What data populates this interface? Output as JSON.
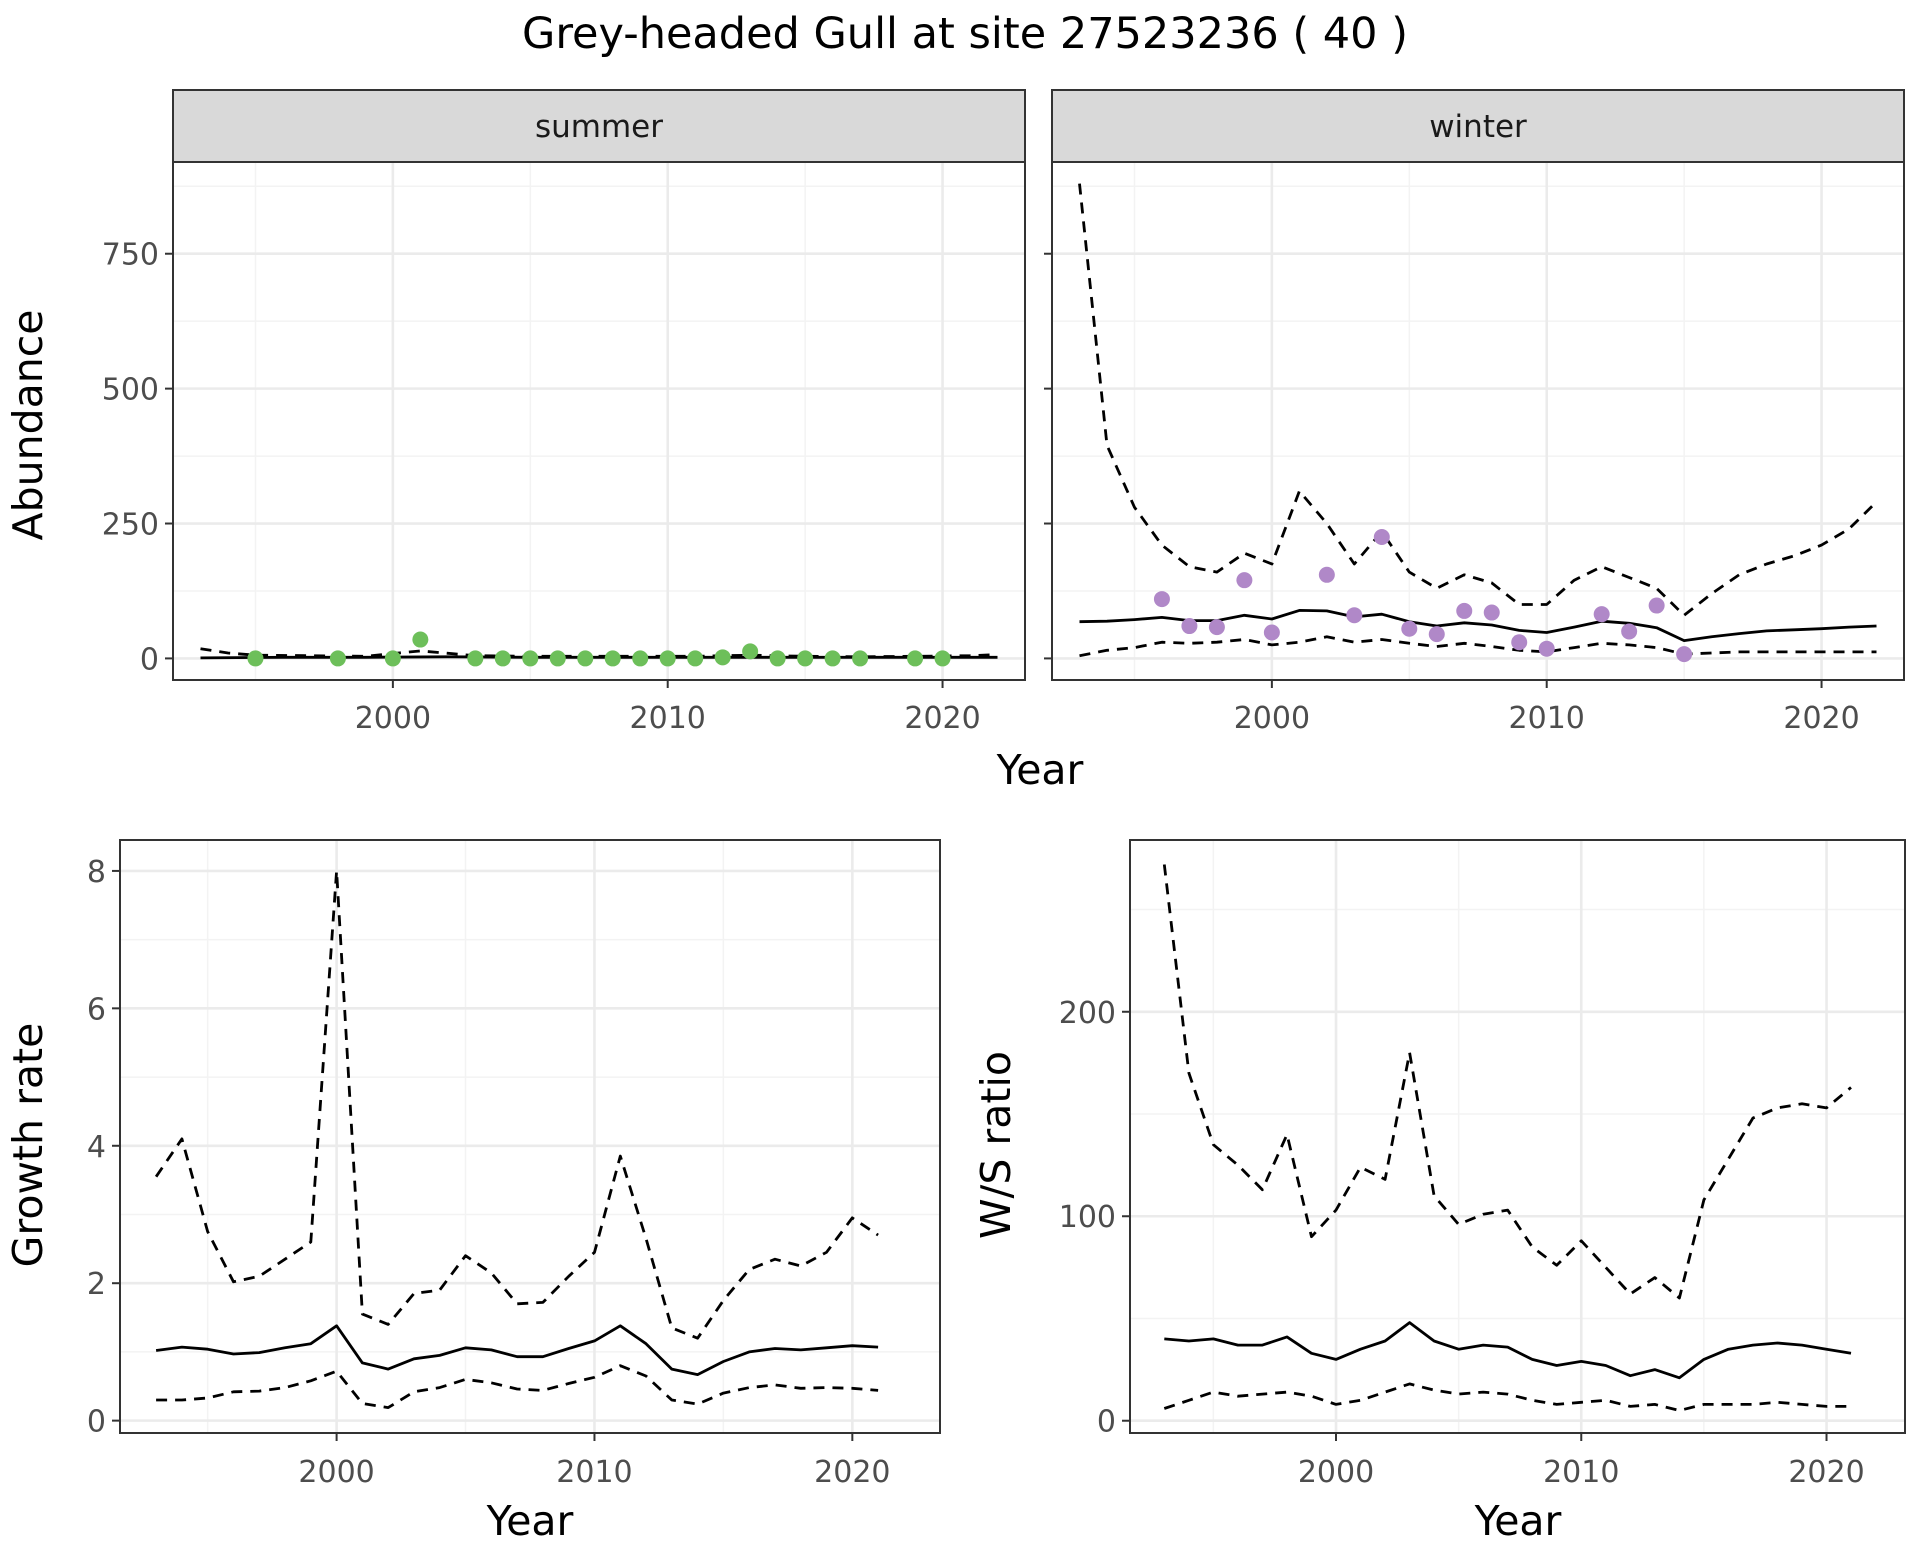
{
  "title": "Grey-headed Gull at site 27523236 ( 40 )",
  "colors": {
    "summer_points": "#6dbf5a",
    "winter_points": "#b088c8",
    "line": "#000000",
    "grid_major": "#ebebeb",
    "grid_minor": "#f3f3f3",
    "strip_bg": "#d9d9d9"
  },
  "chart_data": [
    {
      "type": "line",
      "facet": "summer",
      "xlabel": "Year",
      "ylabel": "Abundance",
      "xlim": [
        1992,
        2023
      ],
      "ylim": [
        -40,
        920
      ],
      "xticks": [
        "2000",
        "2010",
        "2020"
      ],
      "yticks": [
        "0",
        "250",
        "500",
        "750"
      ],
      "grid": true,
      "series": [
        {
          "style": "solid",
          "x": [
            1993,
            1996,
            1999,
            2002,
            2005,
            2008,
            2011,
            2014,
            2017,
            2020,
            2022
          ],
          "y": [
            1,
            2,
            2,
            3,
            2,
            2,
            2,
            2,
            2,
            2,
            2
          ]
        },
        {
          "style": "dashed",
          "x": [
            1993,
            1994,
            1995,
            1997,
            1999,
            2001,
            2003,
            2005,
            2007,
            2009,
            2011,
            2013,
            2015,
            2017,
            2019,
            2021,
            2022
          ],
          "y": [
            18,
            10,
            6,
            5,
            4,
            14,
            5,
            4,
            4,
            4,
            4,
            6,
            4,
            3,
            4,
            5,
            7
          ]
        },
        {
          "style": "points",
          "x": [
            1995,
            1998,
            2000,
            2001,
            2003,
            2004,
            2005,
            2006,
            2007,
            2008,
            2009,
            2010,
            2011,
            2012,
            2013,
            2014,
            2015,
            2016,
            2017,
            2019,
            2020
          ],
          "y": [
            0,
            0,
            0,
            35,
            0,
            0,
            0,
            0,
            0,
            0,
            0,
            0,
            0,
            2,
            13,
            0,
            0,
            0,
            0,
            0,
            0
          ]
        }
      ]
    },
    {
      "type": "line",
      "facet": "winter",
      "xlabel": "Year",
      "ylabel": "Abundance",
      "xlim": [
        1992,
        2023
      ],
      "ylim": [
        -40,
        920
      ],
      "xticks": [
        "2000",
        "2010",
        "2020"
      ],
      "yticks": [
        "0",
        "250",
        "500",
        "750"
      ],
      "grid": true,
      "series": [
        {
          "style": "solid",
          "x": [
            1993,
            1994,
            1995,
            1996,
            1997,
            1998,
            1999,
            2000,
            2001,
            2002,
            2003,
            2004,
            2005,
            2006,
            2007,
            2008,
            2009,
            2010,
            2011,
            2012,
            2013,
            2014,
            2015,
            2016,
            2017,
            2018,
            2019,
            2020,
            2021,
            2022
          ],
          "y": [
            68,
            69,
            72,
            76,
            70,
            70,
            80,
            73,
            89,
            88,
            77,
            82,
            68,
            60,
            66,
            62,
            52,
            48,
            58,
            69,
            65,
            57,
            33,
            40,
            46,
            51,
            53,
            55,
            58,
            60
          ]
        },
        {
          "style": "dashed",
          "x": [
            1993,
            1994,
            1995,
            1996,
            1997,
            1998,
            1999,
            2000,
            2001,
            2002,
            2003,
            2004,
            2005,
            2006,
            2007,
            2008,
            2009,
            2010,
            2011,
            2012,
            2013,
            2014,
            2015,
            2016,
            2017,
            2018,
            2019,
            2020,
            2021,
            2022
          ],
          "y": [
            880,
            395,
            280,
            210,
            170,
            160,
            195,
            175,
            310,
            250,
            175,
            235,
            160,
            130,
            155,
            140,
            100,
            100,
            145,
            170,
            150,
            130,
            80,
            120,
            155,
            175,
            190,
            210,
            240,
            290
          ]
        },
        {
          "style": "dashed",
          "x": [
            1993,
            1994,
            1995,
            1996,
            1997,
            1998,
            1999,
            2000,
            2001,
            2002,
            2003,
            2004,
            2005,
            2006,
            2007,
            2008,
            2009,
            2010,
            2011,
            2012,
            2013,
            2014,
            2015,
            2016,
            2017,
            2018,
            2019,
            2020,
            2021,
            2022
          ],
          "y": [
            5,
            15,
            20,
            30,
            28,
            30,
            35,
            25,
            30,
            40,
            30,
            35,
            28,
            22,
            28,
            22,
            15,
            12,
            20,
            28,
            25,
            20,
            8,
            10,
            12,
            12,
            12,
            12,
            12,
            12
          ]
        },
        {
          "style": "points",
          "x": [
            1996,
            1997,
            1998,
            1999,
            2000,
            2002,
            2003,
            2004,
            2005,
            2006,
            2007,
            2008,
            2009,
            2010,
            2012,
            2013,
            2014,
            2015
          ],
          "y": [
            110,
            60,
            58,
            145,
            48,
            155,
            80,
            225,
            55,
            45,
            88,
            85,
            30,
            18,
            82,
            50,
            98,
            8
          ]
        }
      ]
    },
    {
      "type": "line",
      "xlabel": "Year",
      "ylabel": "Growth rate",
      "xlim": [
        1991.6,
        2023.4
      ],
      "ylim": [
        -0.18,
        8.45
      ],
      "xticks": [
        "2000",
        "2010",
        "2020"
      ],
      "yticks": [
        "0",
        "2",
        "4",
        "6",
        "8"
      ],
      "grid": true,
      "series": [
        {
          "style": "solid",
          "x": [
            1993,
            1994,
            1995,
            1996,
            1997,
            1998,
            1999,
            2000,
            2001,
            2002,
            2003,
            2004,
            2005,
            2006,
            2007,
            2008,
            2009,
            2010,
            2011,
            2012,
            2013,
            2014,
            2015,
            2016,
            2017,
            2018,
            2019,
            2020,
            2021
          ],
          "y": [
            1.02,
            1.07,
            1.04,
            0.97,
            0.99,
            1.06,
            1.12,
            1.38,
            0.84,
            0.75,
            0.9,
            0.95,
            1.06,
            1.03,
            0.93,
            0.93,
            1.05,
            1.16,
            1.38,
            1.12,
            0.75,
            0.67,
            0.86,
            1.0,
            1.05,
            1.03,
            1.06,
            1.09,
            1.07
          ]
        },
        {
          "style": "dashed",
          "x": [
            1993,
            1994,
            1995,
            1996,
            1997,
            1998,
            1999,
            2000,
            2001,
            2002,
            2003,
            2004,
            2005,
            2006,
            2007,
            2008,
            2009,
            2010,
            2011,
            2012,
            2013,
            2014,
            2015,
            2016,
            2017,
            2018,
            2019,
            2020,
            2021
          ],
          "y": [
            3.55,
            4.1,
            2.75,
            2.02,
            2.1,
            2.35,
            2.6,
            8.0,
            1.55,
            1.4,
            1.85,
            1.9,
            2.4,
            2.15,
            1.7,
            1.72,
            2.1,
            2.45,
            3.85,
            2.65,
            1.35,
            1.2,
            1.75,
            2.2,
            2.35,
            2.25,
            2.45,
            2.95,
            2.7
          ]
        },
        {
          "style": "dashed",
          "x": [
            1993,
            1994,
            1995,
            1996,
            1997,
            1998,
            1999,
            2000,
            2001,
            2002,
            2003,
            2004,
            2005,
            2006,
            2007,
            2008,
            2009,
            2010,
            2011,
            2012,
            2013,
            2014,
            2015,
            2016,
            2017,
            2018,
            2019,
            2020,
            2021
          ],
          "y": [
            0.3,
            0.3,
            0.33,
            0.42,
            0.43,
            0.48,
            0.58,
            0.72,
            0.25,
            0.19,
            0.42,
            0.48,
            0.6,
            0.55,
            0.46,
            0.44,
            0.54,
            0.63,
            0.8,
            0.65,
            0.3,
            0.24,
            0.4,
            0.48,
            0.52,
            0.47,
            0.48,
            0.47,
            0.44
          ]
        }
      ]
    },
    {
      "type": "line",
      "xlabel": "Year",
      "ylabel": "W/S ratio",
      "xlim": [
        1991.6,
        2023.2
      ],
      "ylim": [
        -6,
        284
      ],
      "xticks": [
        "2000",
        "2010",
        "2020"
      ],
      "yticks": [
        "0",
        "100",
        "200"
      ],
      "grid": true,
      "series": [
        {
          "style": "solid",
          "x": [
            1993,
            1994,
            1995,
            1996,
            1997,
            1998,
            1999,
            2000,
            2001,
            2002,
            2003,
            2004,
            2005,
            2006,
            2007,
            2008,
            2009,
            2010,
            2011,
            2012,
            2013,
            2014,
            2015,
            2016,
            2017,
            2018,
            2019,
            2020,
            2021
          ],
          "y": [
            40,
            39,
            40,
            37,
            37,
            41,
            33,
            30,
            35,
            39,
            48,
            39,
            35,
            37,
            36,
            30,
            27,
            29,
            27,
            22,
            25,
            21,
            30,
            35,
            37,
            38,
            37,
            35,
            33
          ]
        },
        {
          "style": "dashed",
          "x": [
            1993,
            1994,
            1995,
            1996,
            1997,
            1998,
            1999,
            2000,
            2001,
            2002,
            2003,
            2004,
            2005,
            2006,
            2007,
            2008,
            2009,
            2010,
            2011,
            2012,
            2013,
            2014,
            2015,
            2016,
            2017,
            2018,
            2019,
            2020,
            2021
          ],
          "y": [
            272,
            170,
            135,
            125,
            113,
            140,
            90,
            103,
            124,
            118,
            180,
            110,
            96,
            101,
            103,
            85,
            76,
            88,
            75,
            62,
            70,
            60,
            108,
            128,
            148,
            153,
            155,
            153,
            163
          ]
        },
        {
          "style": "dashed",
          "x": [
            1993,
            1994,
            1995,
            1996,
            1997,
            1998,
            1999,
            2000,
            2001,
            2002,
            2003,
            2004,
            2005,
            2006,
            2007,
            2008,
            2009,
            2010,
            2011,
            2012,
            2013,
            2014,
            2015,
            2016,
            2017,
            2018,
            2019,
            2020,
            2021
          ],
          "y": [
            6,
            10,
            14,
            12,
            13,
            14,
            12,
            8,
            10,
            14,
            18,
            15,
            13,
            14,
            13,
            10,
            8,
            9,
            10,
            7,
            8,
            5,
            8,
            8,
            8,
            9,
            8,
            7,
            7
          ]
        }
      ]
    }
  ]
}
